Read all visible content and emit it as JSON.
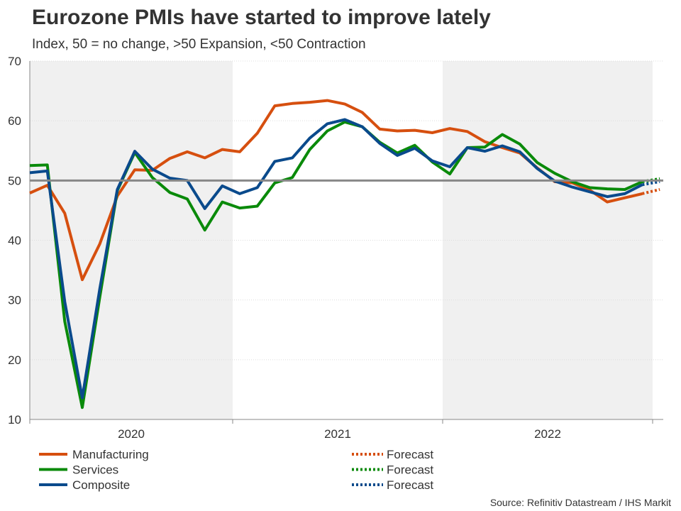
{
  "chart_data": {
    "type": "line",
    "title": "Eurozone PMIs have started to improve lately",
    "subtitle": "Index, 50 = no change, >50 Expansion, <50 Contraction",
    "source": "Source: Refinitiv Datastream / IHS Markit",
    "ylim": [
      10,
      70
    ],
    "yticks": [
      10,
      20,
      30,
      40,
      50,
      60,
      70
    ],
    "year_labels": [
      "2020",
      "2021",
      "2022"
    ],
    "reference_line": 50,
    "x_start": "Jan 2020",
    "series": [
      {
        "name": "Manufacturing",
        "color": "#d64f0f",
        "forecast_label": "Forecast",
        "values": [
          47.9,
          49.2,
          44.5,
          33.4,
          39.4,
          47.4,
          51.8,
          51.7,
          53.7,
          54.8,
          53.8,
          55.2,
          54.8,
          57.9,
          62.5,
          62.9,
          63.1,
          63.4,
          62.8,
          61.4,
          58.6,
          58.3,
          58.4,
          58.0,
          58.7,
          58.2,
          56.5,
          55.5,
          54.6,
          52.1,
          49.8,
          49.6,
          48.4,
          46.4,
          47.1,
          47.8
        ],
        "forecast": 48.5
      },
      {
        "name": "Services",
        "color": "#0a8a0a",
        "forecast_label": "Forecast",
        "values": [
          52.5,
          52.6,
          26.4,
          12.0,
          30.5,
          48.3,
          54.7,
          50.5,
          48.0,
          46.9,
          41.7,
          46.4,
          45.4,
          45.7,
          49.6,
          50.5,
          55.2,
          58.3,
          59.8,
          59.0,
          56.4,
          54.6,
          55.9,
          53.1,
          51.1,
          55.5,
          55.6,
          57.7,
          56.1,
          53.0,
          51.2,
          49.8,
          48.8,
          48.6,
          48.5,
          49.8
        ],
        "forecast": 50.3
      },
      {
        "name": "Composite",
        "color": "#0a4a8c",
        "forecast_label": "Forecast",
        "values": [
          51.3,
          51.6,
          29.7,
          13.6,
          31.9,
          48.5,
          54.9,
          51.9,
          50.4,
          50.0,
          45.3,
          49.1,
          47.8,
          48.8,
          53.2,
          53.8,
          57.1,
          59.5,
          60.2,
          59.0,
          56.2,
          54.2,
          55.4,
          53.3,
          52.3,
          55.5,
          54.9,
          55.8,
          54.8,
          52.0,
          49.9,
          48.9,
          48.1,
          47.3,
          47.8,
          49.3
        ],
        "forecast": 49.8
      }
    ]
  }
}
